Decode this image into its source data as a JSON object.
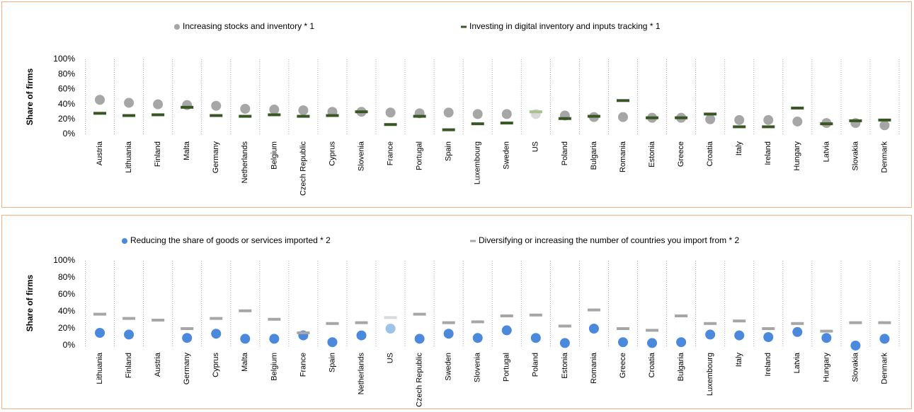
{
  "chart_data": [
    {
      "type": "dot",
      "y_label": "Share of firms",
      "highlight": "US",
      "categories": [
        "Austria",
        "Lithuania",
        "Finland",
        "Malta",
        "Germany",
        "Netherlands",
        "Belgium",
        "Czech Republic",
        "Cyprus",
        "Slovenia",
        "France",
        "Portugal",
        "Spain",
        "Luxembourg",
        "Sweden",
        "US",
        "Poland",
        "Bulgaria",
        "Romania",
        "Estonia",
        "Greece",
        "Croatia",
        "Italy",
        "Ireland",
        "Hungary",
        "Latvia",
        "Slovakia",
        "Denmark"
      ],
      "series": [
        {
          "name": "Increasing stocks and inventory * 1",
          "marker": "circle",
          "color": "#a6a6a6",
          "highlight_color": "#d9d9d9",
          "values": [
            46,
            42,
            40,
            39,
            38,
            34,
            33,
            32,
            30,
            30,
            29,
            28,
            29,
            27,
            27,
            27,
            25,
            23,
            23,
            22,
            22,
            20,
            19,
            19,
            17,
            15,
            15,
            12
          ]
        },
        {
          "name": "Investing in digital inventory and inputs tracking * 1",
          "marker": "dash",
          "color": "#375623",
          "highlight_color": "#a9c08f",
          "values": [
            28,
            25,
            26,
            36,
            25,
            24,
            26,
            24,
            25,
            30,
            13,
            24,
            6,
            14,
            15,
            30,
            21,
            24,
            45,
            22,
            22,
            27,
            10,
            10,
            35,
            14,
            18,
            19
          ]
        }
      ],
      "ylim": [
        0,
        100
      ],
      "yticks": [
        {
          "value": 0,
          "label": "0%"
        },
        {
          "value": 20,
          "label": "20%"
        },
        {
          "value": 40,
          "label": "40%"
        },
        {
          "value": 60,
          "label": "60%"
        },
        {
          "value": 80,
          "label": "80%"
        },
        {
          "value": 100,
          "label": "100%"
        }
      ]
    },
    {
      "type": "dot",
      "y_label": "Share of firms",
      "highlight": "US",
      "categories": [
        "Lithuania",
        "Finland",
        "Austria",
        "Germany",
        "Cyprus",
        "Malta",
        "Belgium",
        "France",
        "Spain",
        "Netherlands",
        "US",
        "Czech Republic",
        "Sweden",
        "Slovenia",
        "Portugal",
        "Poland",
        "Estonia",
        "Romania",
        "Greece",
        "Croatia",
        "Bulgaria",
        "Luxembourg",
        "Italy",
        "Ireland",
        "Latvia",
        "Hungary",
        "Slovakia",
        "Denmark"
      ],
      "series": [
        {
          "name": "Reducing the share of goods or services imported * 2",
          "marker": "circle",
          "color": "#4a89dc",
          "highlight_color": "#9dc3e6",
          "values": [
            15,
            13,
            null,
            9,
            14,
            8,
            8,
            12,
            4,
            12,
            20,
            8,
            14,
            9,
            18,
            9,
            3,
            20,
            4,
            3,
            4,
            13,
            12,
            10,
            16,
            9,
            0,
            8
          ]
        },
        {
          "name": "Diversifying or increasing the number of countries you import from * 2",
          "marker": "dash",
          "color": "#a6a6a6",
          "highlight_color": "#d9d9d9",
          "values": [
            37,
            32,
            30,
            20,
            32,
            41,
            31,
            15,
            26,
            27,
            33,
            37,
            27,
            28,
            35,
            36,
            23,
            42,
            20,
            18,
            35,
            26,
            29,
            20,
            26,
            17,
            27,
            27
          ]
        }
      ],
      "ylim": [
        0,
        100
      ],
      "yticks": [
        {
          "value": 0,
          "label": "0%"
        },
        {
          "value": 20,
          "label": "20%"
        },
        {
          "value": 40,
          "label": "40%"
        },
        {
          "value": 60,
          "label": "60%"
        },
        {
          "value": 80,
          "label": "80%"
        },
        {
          "value": 100,
          "label": "100%"
        }
      ]
    }
  ]
}
